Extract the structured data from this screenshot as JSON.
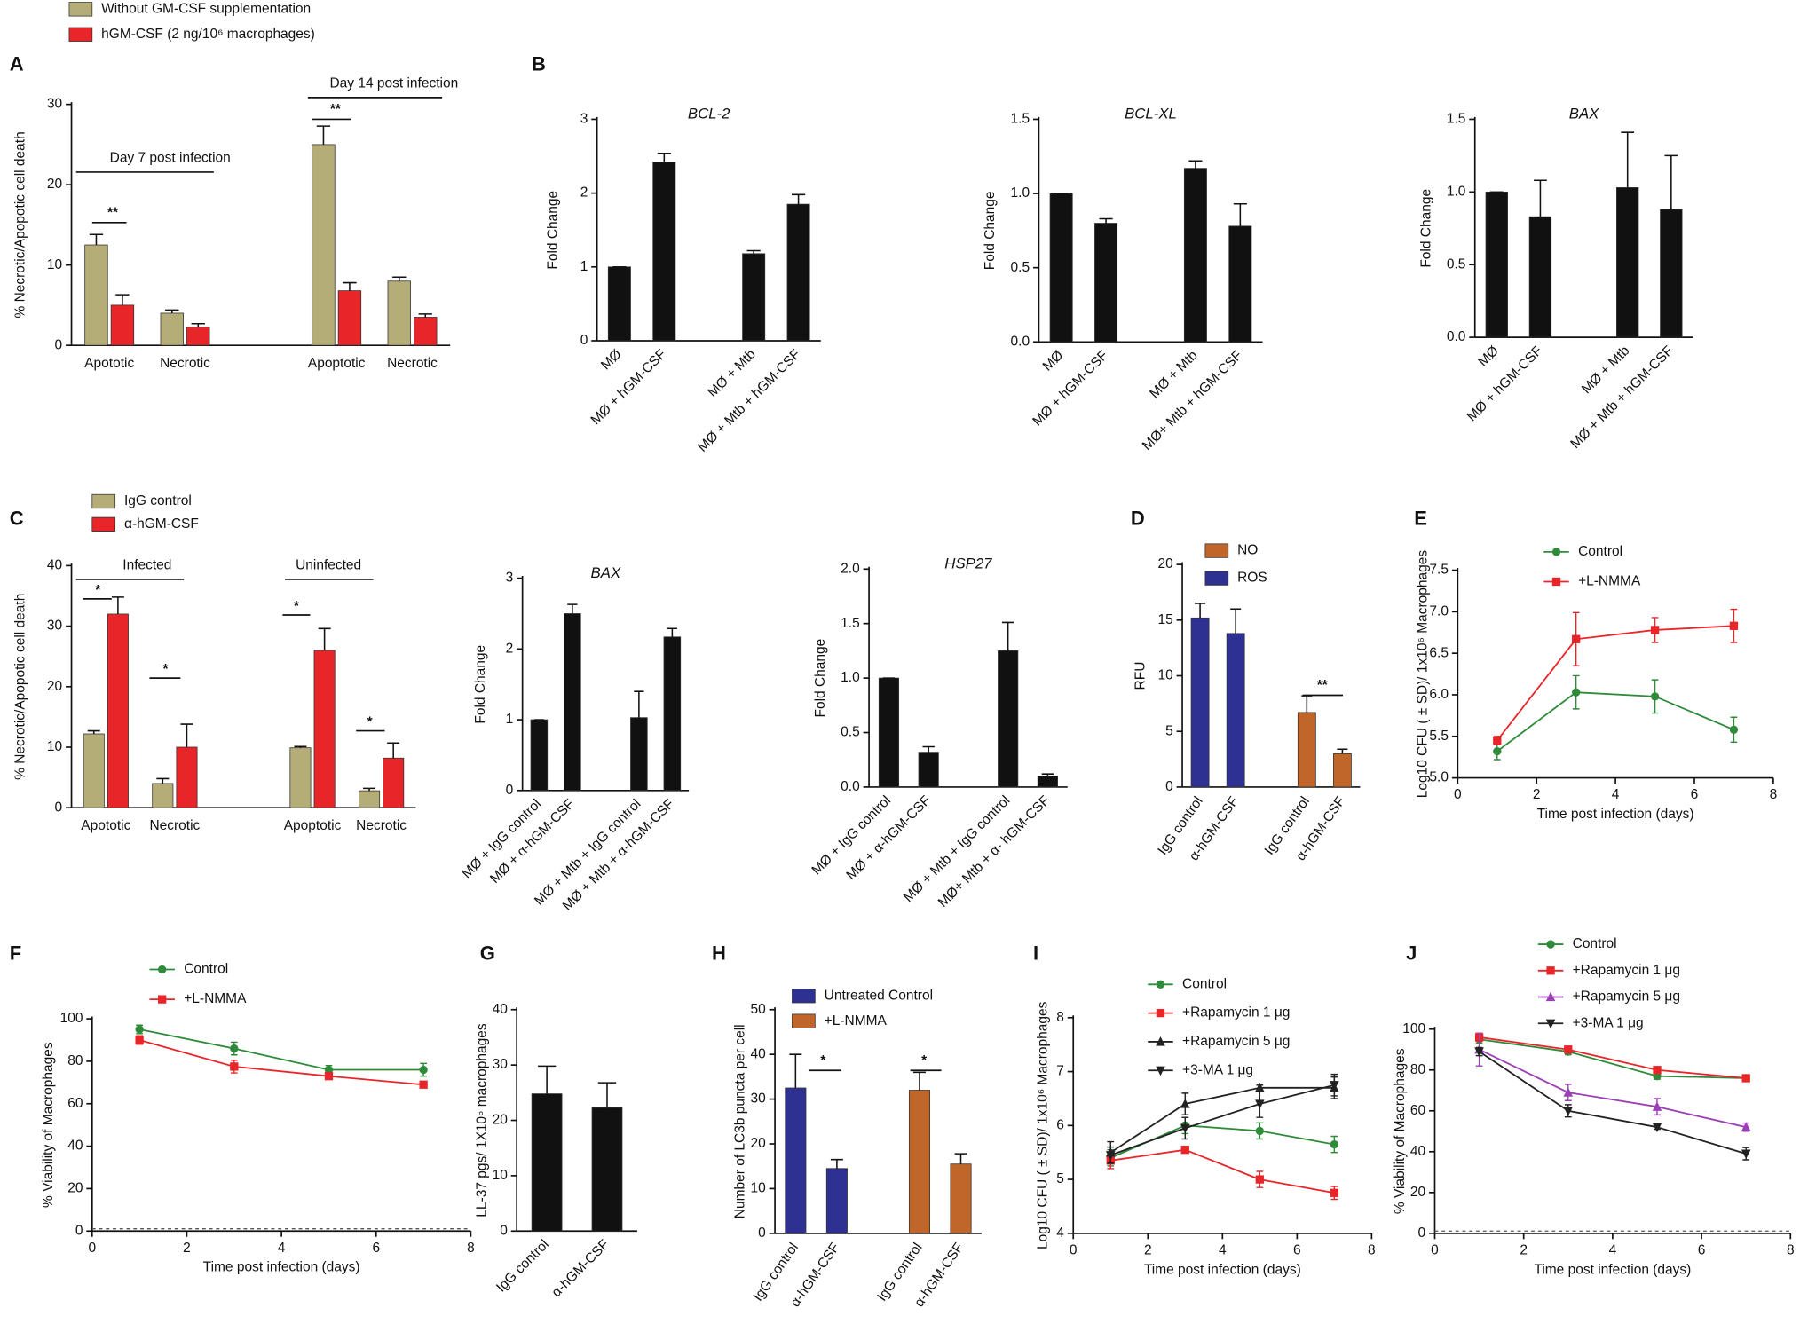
{
  "chart_data": [
    {
      "type": "bar",
      "panel": "A",
      "ylabel": "% Necrotic/Apopotic cell death",
      "categories": [
        "Apototic",
        "Necrotic",
        null,
        "Apoptotic",
        "Necrotic"
      ],
      "series": [
        {
          "name": "Without GM-CSF supplementation",
          "color": "#b5ad78",
          "values": [
            12.5,
            4,
            null,
            25,
            8
          ],
          "errors": [
            1.3,
            0.4,
            null,
            2.3,
            0.5
          ]
        },
        {
          "name": "hGM-CSF (2 ng/10⁶ macrophages)",
          "color": "#e8262a",
          "values": [
            5,
            2.3,
            null,
            6.8,
            3.5
          ],
          "errors": [
            1.3,
            0.4,
            null,
            1,
            0.4
          ]
        }
      ],
      "ylim": [
        0,
        30
      ],
      "yticks": [
        0,
        10,
        20,
        30
      ],
      "annotations": [
        "Day 7 post infection",
        "Day 14 post infection",
        "**",
        "**"
      ]
    },
    {
      "type": "bar",
      "panel": "B",
      "title": "BCL-2",
      "ylabel": "Fold Change",
      "categories": [
        "MØ",
        "MØ + hGM-CSF",
        null,
        "MØ + Mtb",
        "MØ + Mtb + hGM-CSF"
      ],
      "series": [
        {
          "name": null,
          "color": "#111111",
          "values": [
            1,
            2.42,
            null,
            1.18,
            1.85
          ],
          "errors": [
            0,
            0.12,
            null,
            0.04,
            0.13
          ]
        }
      ],
      "ylim": [
        0,
        3
      ],
      "yticks": [
        0,
        1,
        2,
        3
      ]
    },
    {
      "type": "bar",
      "title": "BCL-XL",
      "ylabel": "Fold Change",
      "categories": [
        "MØ",
        "MØ + hGM-CSF",
        null,
        "MØ + Mtb",
        "MØ+ Mtb + hGM-CSF"
      ],
      "series": [
        {
          "name": null,
          "color": "#111111",
          "values": [
            1,
            0.8,
            null,
            1.17,
            0.78
          ],
          "errors": [
            0,
            0.03,
            null,
            0.05,
            0.15
          ]
        }
      ],
      "ylim": [
        0,
        1.5
      ],
      "yticks": [
        {
          "value": 0,
          "label": "0.0"
        },
        0.5,
        {
          "value": 1,
          "label": "1.0"
        },
        1.5
      ]
    },
    {
      "type": "bar",
      "title": "BAX",
      "ylabel": "Fold Change",
      "categories": [
        "MØ",
        "MØ + hGM-CSF",
        null,
        "MØ + Mtb",
        "MØ + Mtb + hGM-CSF"
      ],
      "series": [
        {
          "name": null,
          "color": "#111111",
          "values": [
            1,
            0.83,
            null,
            1.03,
            0.88
          ],
          "errors": [
            0,
            0.25,
            null,
            0.38,
            0.37
          ]
        }
      ],
      "ylim": [
        0,
        1.5
      ],
      "yticks": [
        {
          "value": 0,
          "label": "0.0"
        },
        0.5,
        {
          "value": 1,
          "label": "1.0"
        },
        1.5
      ]
    },
    {
      "type": "bar",
      "panel": "C",
      "ylabel": "% Necrotic/Apopotic cell death",
      "categories": [
        "Apototic",
        "Necrotic",
        null,
        "Apoptotic",
        "Necrotic"
      ],
      "series": [
        {
          "name": "IgG control",
          "color": "#b5ad78",
          "values": [
            12.2,
            4,
            null,
            9.9,
            2.8
          ],
          "errors": [
            0.5,
            0.8,
            null,
            0.2,
            0.4
          ]
        },
        {
          "name": "α-hGM-CSF",
          "color": "#e8262a",
          "values": [
            32,
            10,
            null,
            26,
            8.2
          ],
          "errors": [
            2.8,
            3.8,
            null,
            3.6,
            2.5
          ]
        }
      ],
      "ylim": [
        0,
        40
      ],
      "yticks": [
        0,
        10,
        20,
        30,
        40
      ],
      "annotations": [
        "Infected",
        "Uninfected",
        "*",
        "*",
        "*",
        "*"
      ]
    },
    {
      "type": "bar",
      "title": "BAX",
      "ylabel": "Fold Change",
      "categories": [
        "MØ + IgG control",
        "MØ + α-hGM-CSF",
        null,
        "MØ + Mtb + IgG control",
        "MØ + Mtb + α-hGM-CSF"
      ],
      "series": [
        {
          "name": null,
          "color": "#111111",
          "values": [
            1,
            2.5,
            null,
            1.03,
            2.17
          ],
          "errors": [
            0,
            0.13,
            null,
            0.37,
            0.12
          ]
        }
      ],
      "ylim": [
        0,
        3
      ],
      "yticks": [
        0,
        1,
        2,
        3
      ]
    },
    {
      "type": "bar",
      "title": "HSP27",
      "ylabel": "Fold Change",
      "categories": [
        "MØ + IgG control",
        "MØ + α-hGM-CSF",
        null,
        "MØ + Mtb + IgG control",
        "MØ+ Mtb + α- hGM-CSF"
      ],
      "series": [
        {
          "name": null,
          "color": "#111111",
          "values": [
            1,
            0.32,
            null,
            1.25,
            0.1
          ],
          "errors": [
            0,
            0.05,
            null,
            0.26,
            0.02
          ]
        }
      ],
      "ylim": [
        0,
        2
      ],
      "yticks": [
        {
          "value": 0,
          "label": "0.0"
        },
        0.5,
        {
          "value": 1,
          "label": "1.0"
        },
        1.5,
        {
          "value": 2,
          "label": "2.0"
        }
      ]
    },
    {
      "type": "bar",
      "panel": "D",
      "ylabel": "RFU",
      "categories": [
        "IgG control",
        "α-hGM-CSF",
        null,
        "IgG control",
        "α-hGM-CSF"
      ],
      "series": [
        {
          "name": "NO",
          "color": "#c0662a",
          "values": [
            null,
            null,
            null,
            6.7,
            3
          ],
          "errors": [
            null,
            null,
            null,
            1.5,
            0.4
          ]
        },
        {
          "name": "ROS",
          "color": "#2e3192",
          "values": [
            15.2,
            13.8,
            null,
            null,
            null
          ],
          "errors": [
            1.3,
            2.2,
            null,
            null,
            null
          ]
        }
      ],
      "ylim": [
        0,
        20
      ],
      "yticks": [
        0,
        5,
        10,
        15,
        20
      ],
      "annotations": [
        "**"
      ]
    },
    {
      "type": "line",
      "panel": "E",
      "ylabel": "Log10 CFU ( ± SD)/ 1x10⁶ Macrophages",
      "xlabel": "Time post infection (days)",
      "x": [
        1,
        3,
        5,
        7
      ],
      "series": [
        {
          "name": "Control",
          "color": "#2e8b3a",
          "marker": "circle",
          "values": [
            5.32,
            6.03,
            5.98,
            5.58
          ],
          "errors": [
            0.1,
            0.2,
            0.2,
            0.15
          ]
        },
        {
          "name": "+L-NMMA",
          "color": "#e8262a",
          "marker": "square",
          "values": [
            5.45,
            6.67,
            6.78,
            6.83
          ],
          "errors": [
            0.05,
            0.32,
            0.15,
            0.2
          ]
        }
      ],
      "xlim": [
        0,
        8
      ],
      "xticks": [
        0,
        2,
        4,
        6,
        8
      ],
      "ylim": [
        5,
        7.5
      ],
      "yticks": [
        {
          "value": 5,
          "label": "5.0"
        },
        5.5,
        {
          "value": 6,
          "label": "6.0"
        },
        6.5,
        {
          "value": 7,
          "label": "7.0"
        },
        7.5
      ]
    },
    {
      "type": "line",
      "panel": "F",
      "ylabel": "% Viability of Macrophages",
      "xlabel": "Time post infection (days)",
      "x": [
        1,
        3,
        5,
        7
      ],
      "series": [
        {
          "name": "Control",
          "color": "#2e8b3a",
          "marker": "circle",
          "values": [
            95,
            86,
            76,
            76
          ],
          "errors": [
            2,
            3,
            2,
            3
          ]
        },
        {
          "name": "+L-NMMA",
          "color": "#e8262a",
          "marker": "square",
          "values": [
            90,
            77.5,
            73,
            69
          ],
          "errors": [
            2,
            3,
            1.5,
            1.5
          ]
        }
      ],
      "xlim": [
        0,
        8
      ],
      "xticks": [
        0,
        2,
        4,
        6,
        8
      ],
      "ylim": [
        0,
        100
      ],
      "yticks": [
        0,
        20,
        40,
        60,
        80,
        100
      ]
    },
    {
      "type": "bar",
      "panel": "G",
      "ylabel": "LL-37 pgs/ 1X10⁶ macrophages",
      "categories": [
        "IgG control",
        "α-hGM-CSF"
      ],
      "series": [
        {
          "name": null,
          "color": "#111111",
          "values": [
            24.8,
            22.3
          ],
          "errors": [
            5,
            4.5
          ]
        }
      ],
      "ylim": [
        0,
        40
      ],
      "yticks": [
        0,
        10,
        20,
        30,
        40
      ]
    },
    {
      "type": "bar",
      "panel": "H",
      "ylabel": "Number of LC3b puncta per cell",
      "categories": [
        "IgG control",
        "α-hGM-CSF",
        null,
        "IgG control",
        "α-hGM-CSF"
      ],
      "series": [
        {
          "name": "Untreated Control",
          "color": "#2e3192",
          "values": [
            32.5,
            14.5,
            null,
            null,
            null
          ],
          "errors": [
            7.5,
            2,
            null,
            null,
            null
          ]
        },
        {
          "name": "+L-NMMA",
          "color": "#c0662a",
          "values": [
            null,
            null,
            null,
            32,
            15.5
          ],
          "errors": [
            null,
            null,
            null,
            4,
            2.3
          ]
        }
      ],
      "ylim": [
        0,
        50
      ],
      "yticks": [
        0,
        10,
        20,
        30,
        40,
        50
      ],
      "annotations": [
        "*",
        "*"
      ]
    },
    {
      "type": "line",
      "panel": "I",
      "ylabel": "Log10 CFU ( ± SD)/ 1x10⁶ Macrophages",
      "xlabel": "Time post infection (days)",
      "x": [
        1,
        3,
        5,
        7
      ],
      "series": [
        {
          "name": "Control",
          "color": "#2e8b3a",
          "marker": "circle",
          "values": [
            5.4,
            6.0,
            5.9,
            5.65
          ],
          "errors": [
            0.15,
            0.15,
            0.15,
            0.15
          ]
        },
        {
          "name": "+Rapamycin 1 μg",
          "color": "#e8262a",
          "marker": "square",
          "values": [
            5.35,
            5.55,
            5.0,
            4.75
          ],
          "errors": [
            0.15,
            0.05,
            0.15,
            0.12
          ]
        },
        {
          "name": "+Rapamycin 5 μg",
          "color": "#222222",
          "marker": "triangle",
          "values": [
            5.5,
            6.4,
            6.7,
            6.7
          ],
          "errors": [
            0.2,
            0.2,
            0.05,
            0.2
          ]
        },
        {
          "name": "+3-MA 1 μg",
          "color": "#222222",
          "marker": "triangle-down",
          "values": [
            5.45,
            5.95,
            6.4,
            6.75
          ],
          "errors": [
            0.15,
            0.2,
            0.25,
            0.2
          ]
        }
      ],
      "xlim": [
        0,
        8
      ],
      "xticks": [
        0,
        2,
        4,
        6,
        8
      ],
      "ylim": [
        4,
        8
      ],
      "yticks": [
        4,
        5,
        6,
        7,
        8
      ]
    },
    {
      "type": "line",
      "panel": "J",
      "ylabel": "% Viability of Macrophages",
      "xlabel": "Time post infection (days)",
      "x": [
        1,
        3,
        5,
        7
      ],
      "series": [
        {
          "name": "Control",
          "color": "#2e8b3a",
          "marker": "circle",
          "values": [
            95,
            89,
            77,
            76
          ],
          "errors": [
            2,
            1.5,
            1.5,
            1.5
          ]
        },
        {
          "name": "+Rapamycin 1 μg",
          "color": "#e8262a",
          "marker": "square",
          "values": [
            96,
            90,
            80,
            76
          ],
          "errors": [
            2,
            1.5,
            1.5,
            1.5
          ]
        },
        {
          "name": "+Rapamycin 5 μg",
          "color": "#9b3fb5",
          "marker": "triangle",
          "values": [
            90,
            69,
            62,
            52
          ],
          "errors": [
            8,
            4,
            4,
            2
          ]
        },
        {
          "name": "+3-MA 1 μg",
          "color": "#222222",
          "marker": "triangle-down",
          "values": [
            89,
            60,
            52,
            39
          ],
          "errors": [
            2,
            3,
            1,
            3
          ]
        }
      ],
      "xlim": [
        0,
        8
      ],
      "xticks": [
        0,
        2,
        4,
        6,
        8
      ],
      "ylim": [
        0,
        100
      ],
      "yticks": [
        0,
        20,
        40,
        60,
        80,
        100
      ]
    }
  ]
}
